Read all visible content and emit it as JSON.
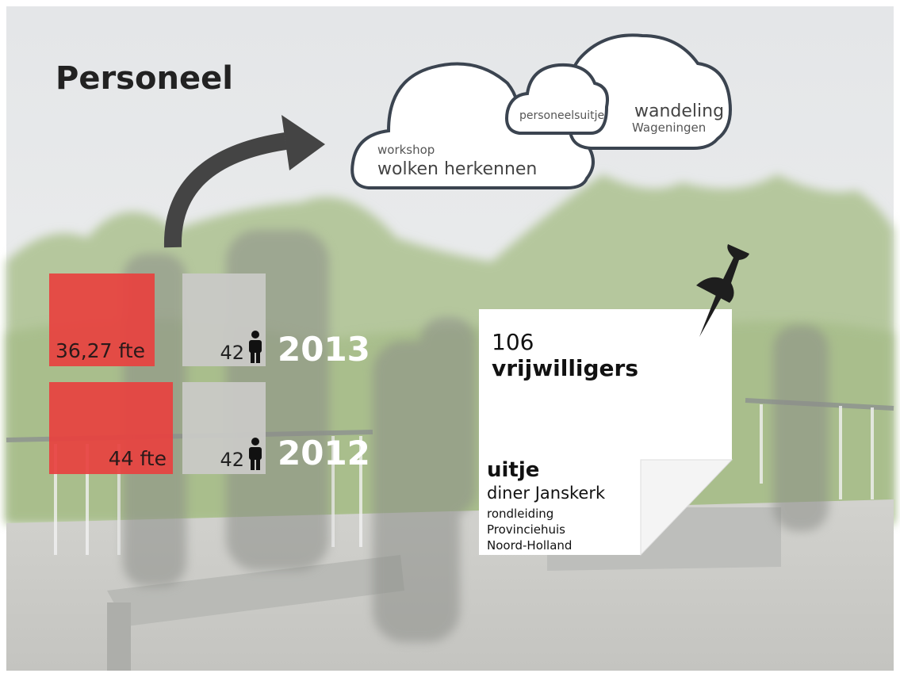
{
  "title": "Personeel",
  "clouds": [
    {
      "small": "workshop",
      "large": "wolken herkennen"
    },
    {
      "small": "personeelsuitje"
    },
    {
      "large": "wandeling",
      "small": "Wageningen"
    }
  ],
  "stats": [
    {
      "fte": "36,27 fte",
      "people": "42",
      "year": "2013"
    },
    {
      "fte": "44 fte",
      "people": "42",
      "year": "2012"
    }
  ],
  "note": {
    "count": "106",
    "label": "vrijwilligers",
    "heading": "uitje",
    "lines": [
      "diner Janskerk",
      "rondleiding",
      "Provinciehuis",
      "Noord-Holland"
    ]
  }
}
